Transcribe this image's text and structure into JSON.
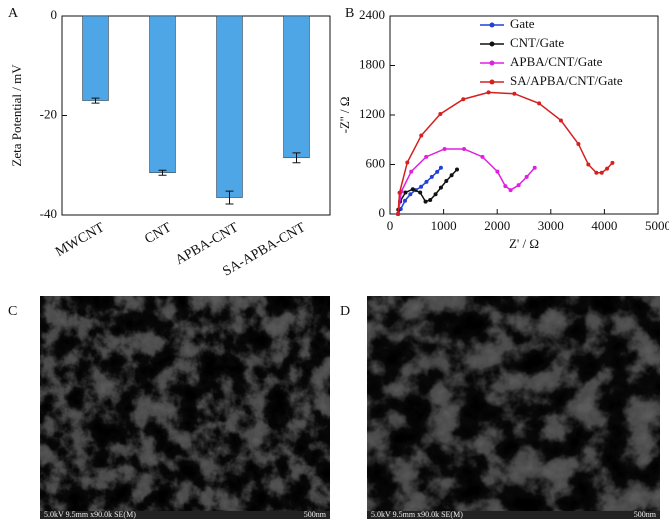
{
  "chart_data": [
    {
      "label": "A",
      "type": "bar",
      "ylabel": "Zeta Potential / mV",
      "categories": [
        "MWCNT",
        "CNT",
        "APBA-CNT",
        "SA-APBA-CNT"
      ],
      "values": [
        -17,
        -31.5,
        -36.5,
        -28.5
      ],
      "errors": [
        0.5,
        0.5,
        1.3,
        1.0
      ],
      "color": "#4ea6e6",
      "ylim": [
        -40,
        0
      ],
      "yticks": [
        -40,
        -20,
        0
      ]
    },
    {
      "label": "B",
      "type": "line",
      "xlabel": "Z' / Ω",
      "ylabel": "-Z'' / Ω",
      "xlim": [
        0,
        5000
      ],
      "xticks": [
        0,
        1000,
        2000,
        3000,
        4000,
        5000
      ],
      "ylim": [
        0,
        2400
      ],
      "yticks": [
        0,
        600,
        1200,
        1800,
        2400
      ],
      "legend": "upper right",
      "series": [
        {
          "name": "Gate",
          "color": "#2040d8",
          "x": [
            150,
            200,
            280,
            380,
            480,
            580,
            680,
            780,
            880,
            950
          ],
          "values": [
            0,
            60,
            160,
            240,
            290,
            330,
            390,
            450,
            510,
            560
          ]
        },
        {
          "name": "CNT/Gate",
          "color": "#111111",
          "x": [
            150,
            154,
            187,
            288,
            425,
            563,
            663,
            750,
            850,
            950,
            1050,
            1150,
            1250
          ],
          "values": [
            0,
            52,
            150,
            260,
            300,
            260,
            150,
            170,
            240,
            320,
            400,
            470,
            540
          ]
        },
        {
          "name": "APBA/CNT/Gate",
          "color": "#e020e0",
          "x": [
            150,
            213,
            396,
            675,
            1018,
            1382,
            1725,
            2004,
            2152,
            2250,
            2400,
            2550,
            2700
          ],
          "values": [
            0,
            274,
            514,
            693,
            788,
            788,
            693,
            514,
            338,
            290,
            350,
            450,
            560
          ]
        },
        {
          "name": "SA/APBA/CNT/Gate",
          "color": "#d62020",
          "x": [
            150,
            178,
            323,
            583,
            939,
            1367,
            1839,
            2321,
            2782,
            3189,
            3515,
            3700,
            3850,
            3950,
            4050,
            4150
          ],
          "values": [
            0,
            257,
            625,
            951,
            1212,
            1391,
            1474,
            1458,
            1341,
            1134,
            849,
            600,
            500,
            500,
            550,
            620
          ]
        }
      ]
    }
  ],
  "images": [
    {
      "label": "C",
      "info": "5.0kV 9.5mm x90.0k SE(M)",
      "scale": "500nm"
    },
    {
      "label": "D",
      "info": "5.0kV 9.5mm x90.0k SE(M)",
      "scale": "500nm"
    }
  ]
}
